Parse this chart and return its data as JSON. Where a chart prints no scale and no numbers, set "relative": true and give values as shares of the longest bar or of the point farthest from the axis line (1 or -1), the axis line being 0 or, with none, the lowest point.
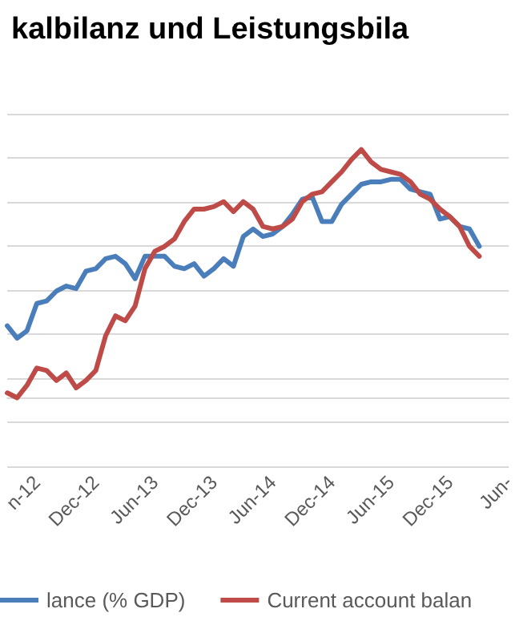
{
  "chart_data": {
    "type": "line",
    "title": "kalbilanz und Leistungsbila",
    "relative": true,
    "grid": "y",
    "legend": "bottom",
    "marker": "none",
    "line_style": "solid",
    "categories": [
      null,
      null,
      null,
      "n-12",
      null,
      null,
      null,
      null,
      null,
      "Dec-12",
      null,
      null,
      null,
      null,
      null,
      "Jun-13",
      null,
      null,
      null,
      null,
      null,
      "Dec-13",
      null,
      null,
      null,
      null,
      null,
      "Jun-14",
      null,
      null,
      null,
      null,
      null,
      "Dec-14",
      null,
      null,
      null,
      null,
      null,
      "Jun-15",
      null,
      null,
      null,
      null,
      null,
      "Dec-15",
      null,
      null,
      null,
      null,
      null,
      "Jun-"
    ],
    "series": [
      {
        "name": "lance (% GDP)",
        "color": "#4a7ebb",
        "values": [
          0.29,
          0.24,
          0.27,
          0.38,
          0.39,
          0.43,
          0.45,
          0.44,
          0.51,
          0.52,
          0.56,
          0.57,
          0.54,
          0.48,
          0.57,
          0.57,
          0.57,
          0.53,
          0.52,
          0.54,
          0.49,
          0.52,
          0.56,
          0.53,
          0.65,
          0.68,
          0.65,
          0.66,
          0.69,
          0.74,
          0.8,
          0.81,
          0.71,
          0.71,
          0.78,
          0.82,
          0.86,
          0.87,
          0.87,
          0.88,
          0.88,
          0.84,
          0.83,
          0.82,
          0.72,
          0.73,
          0.69,
          0.68,
          0.61,
          null,
          null,
          null
        ]
      },
      {
        "name": "Current account balan",
        "color": "#be4b48",
        "values": [
          0.02,
          0,
          0.05,
          0.12,
          0.11,
          0.07,
          0.1,
          0.04,
          0.07,
          0.11,
          0.25,
          0.33,
          0.31,
          0.37,
          0.52,
          0.59,
          0.61,
          0.64,
          0.71,
          0.76,
          0.76,
          0.77,
          0.79,
          0.75,
          0.79,
          0.76,
          0.69,
          0.68,
          0.69,
          0.72,
          0.79,
          0.82,
          0.83,
          0.87,
          0.91,
          0.96,
          1,
          0.95,
          0.92,
          0.91,
          0.9,
          0.87,
          0.82,
          0.8,
          0.76,
          0.73,
          0.69,
          0.61,
          0.57,
          null,
          null,
          null
        ]
      }
    ]
  }
}
